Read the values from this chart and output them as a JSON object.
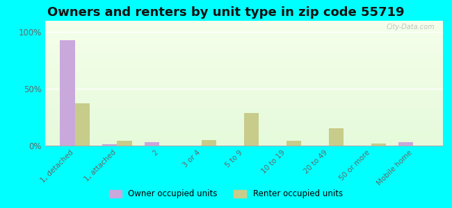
{
  "title": "Owners and renters by unit type in zip code 55719",
  "categories": [
    "1, detached",
    "1, attached",
    "2",
    "3 or 4",
    "5 to 9",
    "10 to 19",
    "20 to 49",
    "50 or more",
    "Mobile home"
  ],
  "owner_values": [
    93,
    1,
    3,
    0,
    0,
    0,
    0,
    0,
    3
  ],
  "renter_values": [
    37,
    4,
    0,
    5,
    29,
    4,
    15,
    2,
    0
  ],
  "owner_color": "#c9a8dc",
  "renter_color": "#c8cc8a",
  "outer_bg_color": "#00ffff",
  "yticks": [
    0,
    50,
    100
  ],
  "ylim": [
    0,
    110
  ],
  "legend_owner": "Owner occupied units",
  "legend_renter": "Renter occupied units",
  "title_fontsize": 13,
  "bar_width": 0.35
}
